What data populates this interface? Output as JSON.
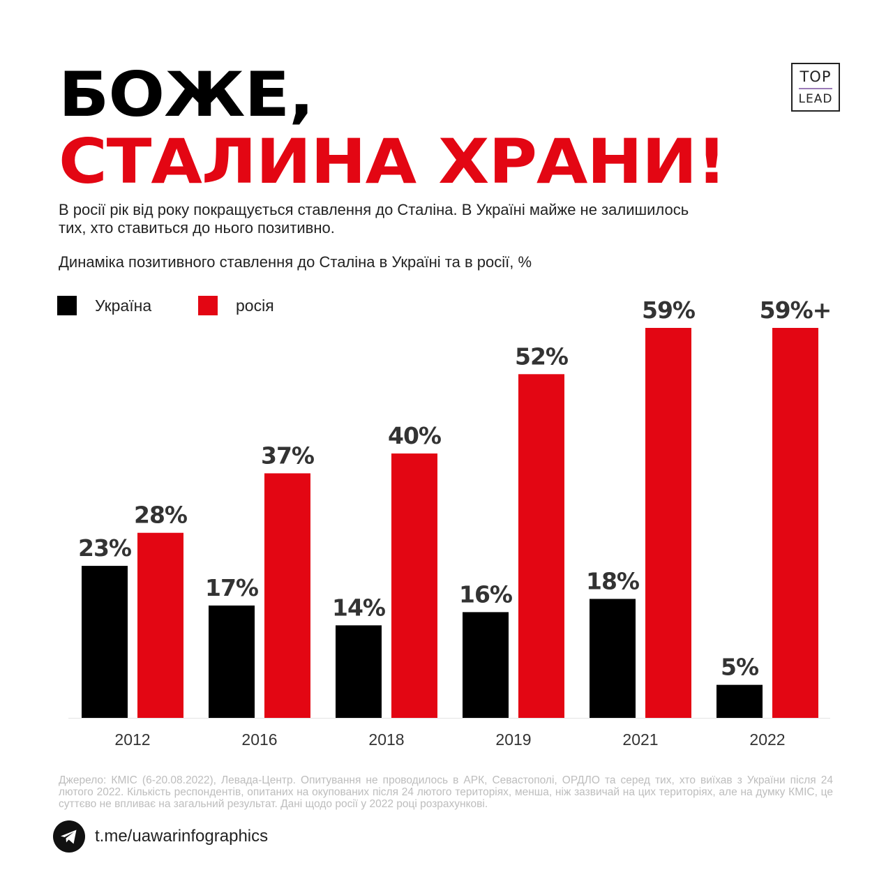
{
  "header": {
    "title_line1": "БОЖЕ,",
    "title_line2": "СТАЛИНА ХРАНИ!",
    "subtitle": "В росії рік від року покращується ставлення до Сталіна. В Україні майже не залишилось тих, хто ставиться до нього позитивно.",
    "chart_caption": "Динаміка позитивного ставлення до Сталіна в Україні та в росії, %"
  },
  "logo": {
    "top": "TOP",
    "bottom": "LEAD"
  },
  "colors": {
    "ukraine": "#000000",
    "russia": "#e30613",
    "label": "#333333",
    "accent": "#e30613"
  },
  "chart_data": {
    "type": "bar",
    "title": "Динаміка позитивного ставлення до Сталіна в Україні та в росії, %",
    "xlabel": "",
    "ylabel": "",
    "categories": [
      "2012",
      "2016",
      "2018",
      "2019",
      "2021",
      "2022"
    ],
    "series": [
      {
        "name": "Україна",
        "values": [
          23,
          17,
          14,
          16,
          18,
          5
        ],
        "labels": [
          "23%",
          "17%",
          "14%",
          "16%",
          "18%",
          "5%"
        ]
      },
      {
        "name": "росія",
        "values": [
          28,
          37,
          40,
          52,
          59,
          59
        ],
        "labels": [
          "28%",
          "37%",
          "40%",
          "52%",
          "59%",
          "59%+"
        ]
      }
    ],
    "ylim": [
      0,
      59
    ],
    "grid": false,
    "legend": "top-left"
  },
  "footer": {
    "source": "Джерело: КМІС (6-20.08.2022), Левада-Центр. Опитування не проводилось в АРК, Севастополі, ОРДЛО та серед тих, хто виїхав з України після 24 лютого 2022. Кількість респондентів, опитаних на окупованих після 24 лютого територіях, менша, ніж зазвичай на цих територіях, але на думку КМІС, це суттєво не впливає на загальний результат. Дані щодо росії у 2022 році розрахункові.",
    "channel": "t.me/uawarinfographics",
    "icon": "telegram-icon"
  }
}
